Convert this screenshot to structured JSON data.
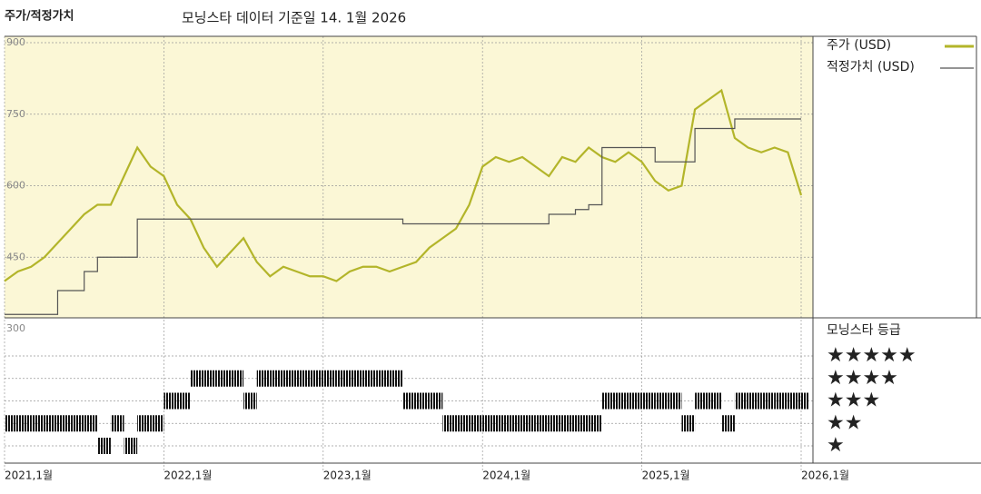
{
  "chart_data": {
    "type": "line",
    "title": "주가/적정가치",
    "subtitle": "모닝스타 데이터 기준일 14. 1월 2026",
    "x": [
      "2021-01",
      "2021-02",
      "2021-03",
      "2021-04",
      "2021-05",
      "2021-06",
      "2021-07",
      "2021-08",
      "2021-09",
      "2021-10",
      "2021-11",
      "2021-12",
      "2022-01",
      "2022-02",
      "2022-03",
      "2022-04",
      "2022-05",
      "2022-06",
      "2022-07",
      "2022-08",
      "2022-09",
      "2022-10",
      "2022-11",
      "2022-12",
      "2023-01",
      "2023-02",
      "2023-03",
      "2023-04",
      "2023-05",
      "2023-06",
      "2023-07",
      "2023-08",
      "2023-09",
      "2023-10",
      "2023-11",
      "2023-12",
      "2024-01",
      "2024-02",
      "2024-03",
      "2024-04",
      "2024-05",
      "2024-06",
      "2024-07",
      "2024-08",
      "2024-09",
      "2024-10",
      "2024-11",
      "2024-12",
      "2025-01",
      "2025-02",
      "2025-03",
      "2025-04",
      "2025-05",
      "2025-06",
      "2025-07",
      "2025-08",
      "2025-09",
      "2025-10",
      "2025-11",
      "2025-12",
      "2026-01"
    ],
    "xticks": [
      {
        "value": "2021-01",
        "label": "2021,1월"
      },
      {
        "value": "2022-01",
        "label": "2022,1월"
      },
      {
        "value": "2023-01",
        "label": "2023,1월"
      },
      {
        "value": "2024-01",
        "label": "2024,1월"
      },
      {
        "value": "2025-01",
        "label": "2025,1월"
      },
      {
        "value": "2026-01",
        "label": "2026,1월"
      }
    ],
    "ylim": [
      300,
      900
    ],
    "yticks": [
      300,
      450,
      600,
      750,
      900
    ],
    "grid": true,
    "series": [
      {
        "name": "주가 (USD)",
        "color": "#b3b52a",
        "values": [
          400,
          420,
          430,
          450,
          480,
          510,
          540,
          560,
          560,
          620,
          680,
          640,
          620,
          560,
          530,
          470,
          430,
          460,
          490,
          440,
          410,
          430,
          420,
          410,
          410,
          400,
          420,
          430,
          430,
          420,
          430,
          440,
          470,
          490,
          510,
          560,
          640,
          660,
          650,
          660,
          640,
          620,
          660,
          650,
          680,
          660,
          650,
          670,
          650,
          610,
          590,
          600,
          760,
          780,
          800,
          700,
          680,
          670,
          680,
          670,
          580
        ]
      },
      {
        "name": "적정가치 (USD)",
        "color": "#555555",
        "step": true,
        "values": [
          330,
          330,
          330,
          330,
          380,
          380,
          420,
          450,
          450,
          450,
          530,
          530,
          530,
          530,
          530,
          530,
          530,
          530,
          530,
          530,
          530,
          530,
          530,
          530,
          530,
          530,
          530,
          530,
          530,
          530,
          520,
          520,
          520,
          520,
          520,
          520,
          520,
          520,
          520,
          520,
          520,
          540,
          540,
          550,
          560,
          680,
          680,
          680,
          680,
          650,
          650,
          650,
          720,
          720,
          720,
          740,
          740,
          740,
          740,
          740,
          740
        ]
      }
    ],
    "ratings": {
      "title": "모닝스타 등급",
      "levels": [
        {
          "value": 5,
          "label": "★★★★★"
        },
        {
          "value": 4,
          "label": "★★★★"
        },
        {
          "value": 3,
          "label": "★★★"
        },
        {
          "value": 2,
          "label": "★★"
        },
        {
          "value": 1,
          "label": "★"
        }
      ],
      "values": [
        2,
        2,
        2,
        2,
        2,
        2,
        2,
        1,
        2,
        1,
        2,
        2,
        3,
        3,
        4,
        4,
        4,
        4,
        3,
        4,
        4,
        4,
        4,
        4,
        4,
        4,
        4,
        4,
        4,
        4,
        3,
        3,
        3,
        2,
        2,
        2,
        2,
        2,
        2,
        2,
        2,
        2,
        2,
        2,
        2,
        3,
        3,
        3,
        3,
        3,
        3,
        2,
        3,
        3,
        2,
        3,
        3,
        3,
        3,
        3,
        3
      ]
    }
  }
}
